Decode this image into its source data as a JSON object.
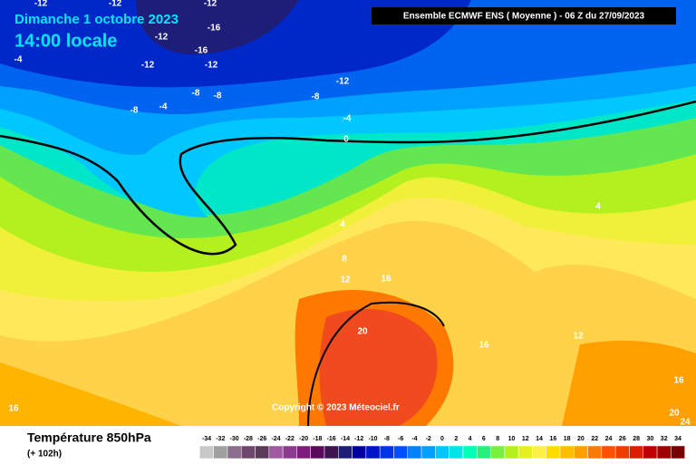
{
  "header": {
    "date": "Dimanche 1 octobre 2023",
    "time": "14:00 locale",
    "run": "Ensemble ECMWF ENS  ( Moyenne )  -  06 Z du 27/09/2023"
  },
  "copyright": "Copyright © 2023 Méteociel.fr",
  "footer": {
    "title": "Température 850hPa",
    "subtitle": "(+ 102h)"
  },
  "contour_labels": [
    "-12",
    "-12",
    "-12",
    "-16",
    "-12",
    "-4",
    "-16",
    "-12",
    "-12",
    "-12",
    "-8",
    "-8",
    "-8",
    "-8",
    "-4",
    "-4",
    "0",
    "4",
    "8",
    "12",
    "16",
    "20",
    "16",
    "12",
    "4",
    "16",
    "16",
    "20",
    "24"
  ],
  "legend": {
    "ticks": [
      -34,
      -32,
      -30,
      -28,
      -26,
      -24,
      -22,
      -20,
      -18,
      -16,
      -14,
      -12,
      -10,
      -8,
      -6,
      -4,
      -2,
      0,
      2,
      4,
      6,
      8,
      10,
      12,
      14,
      16,
      18,
      20,
      22,
      24,
      26,
      28,
      30,
      32,
      34
    ],
    "colors": [
      "#c8c8c8",
      "#a0a0a0",
      "#8c6e8c",
      "#6e466e",
      "#5a3c5a",
      "#a05aa0",
      "#8c3c8c",
      "#7d1e7d",
      "#5a0a5a",
      "#3c1450",
      "#1e1e78",
      "#0000a0",
      "#0014c8",
      "#0032e6",
      "#0050ff",
      "#0082ff",
      "#00a0ff",
      "#00c8ff",
      "#00e6e6",
      "#00ffb4",
      "#28f078",
      "#78f03c",
      "#b4f01e",
      "#e6f01e",
      "#fff046",
      "#ffdc00",
      "#ffbe00",
      "#ffa000",
      "#ff7800",
      "#ff5000",
      "#f03c00",
      "#dc1e00",
      "#be0000",
      "#a00000",
      "#780000"
    ]
  }
}
